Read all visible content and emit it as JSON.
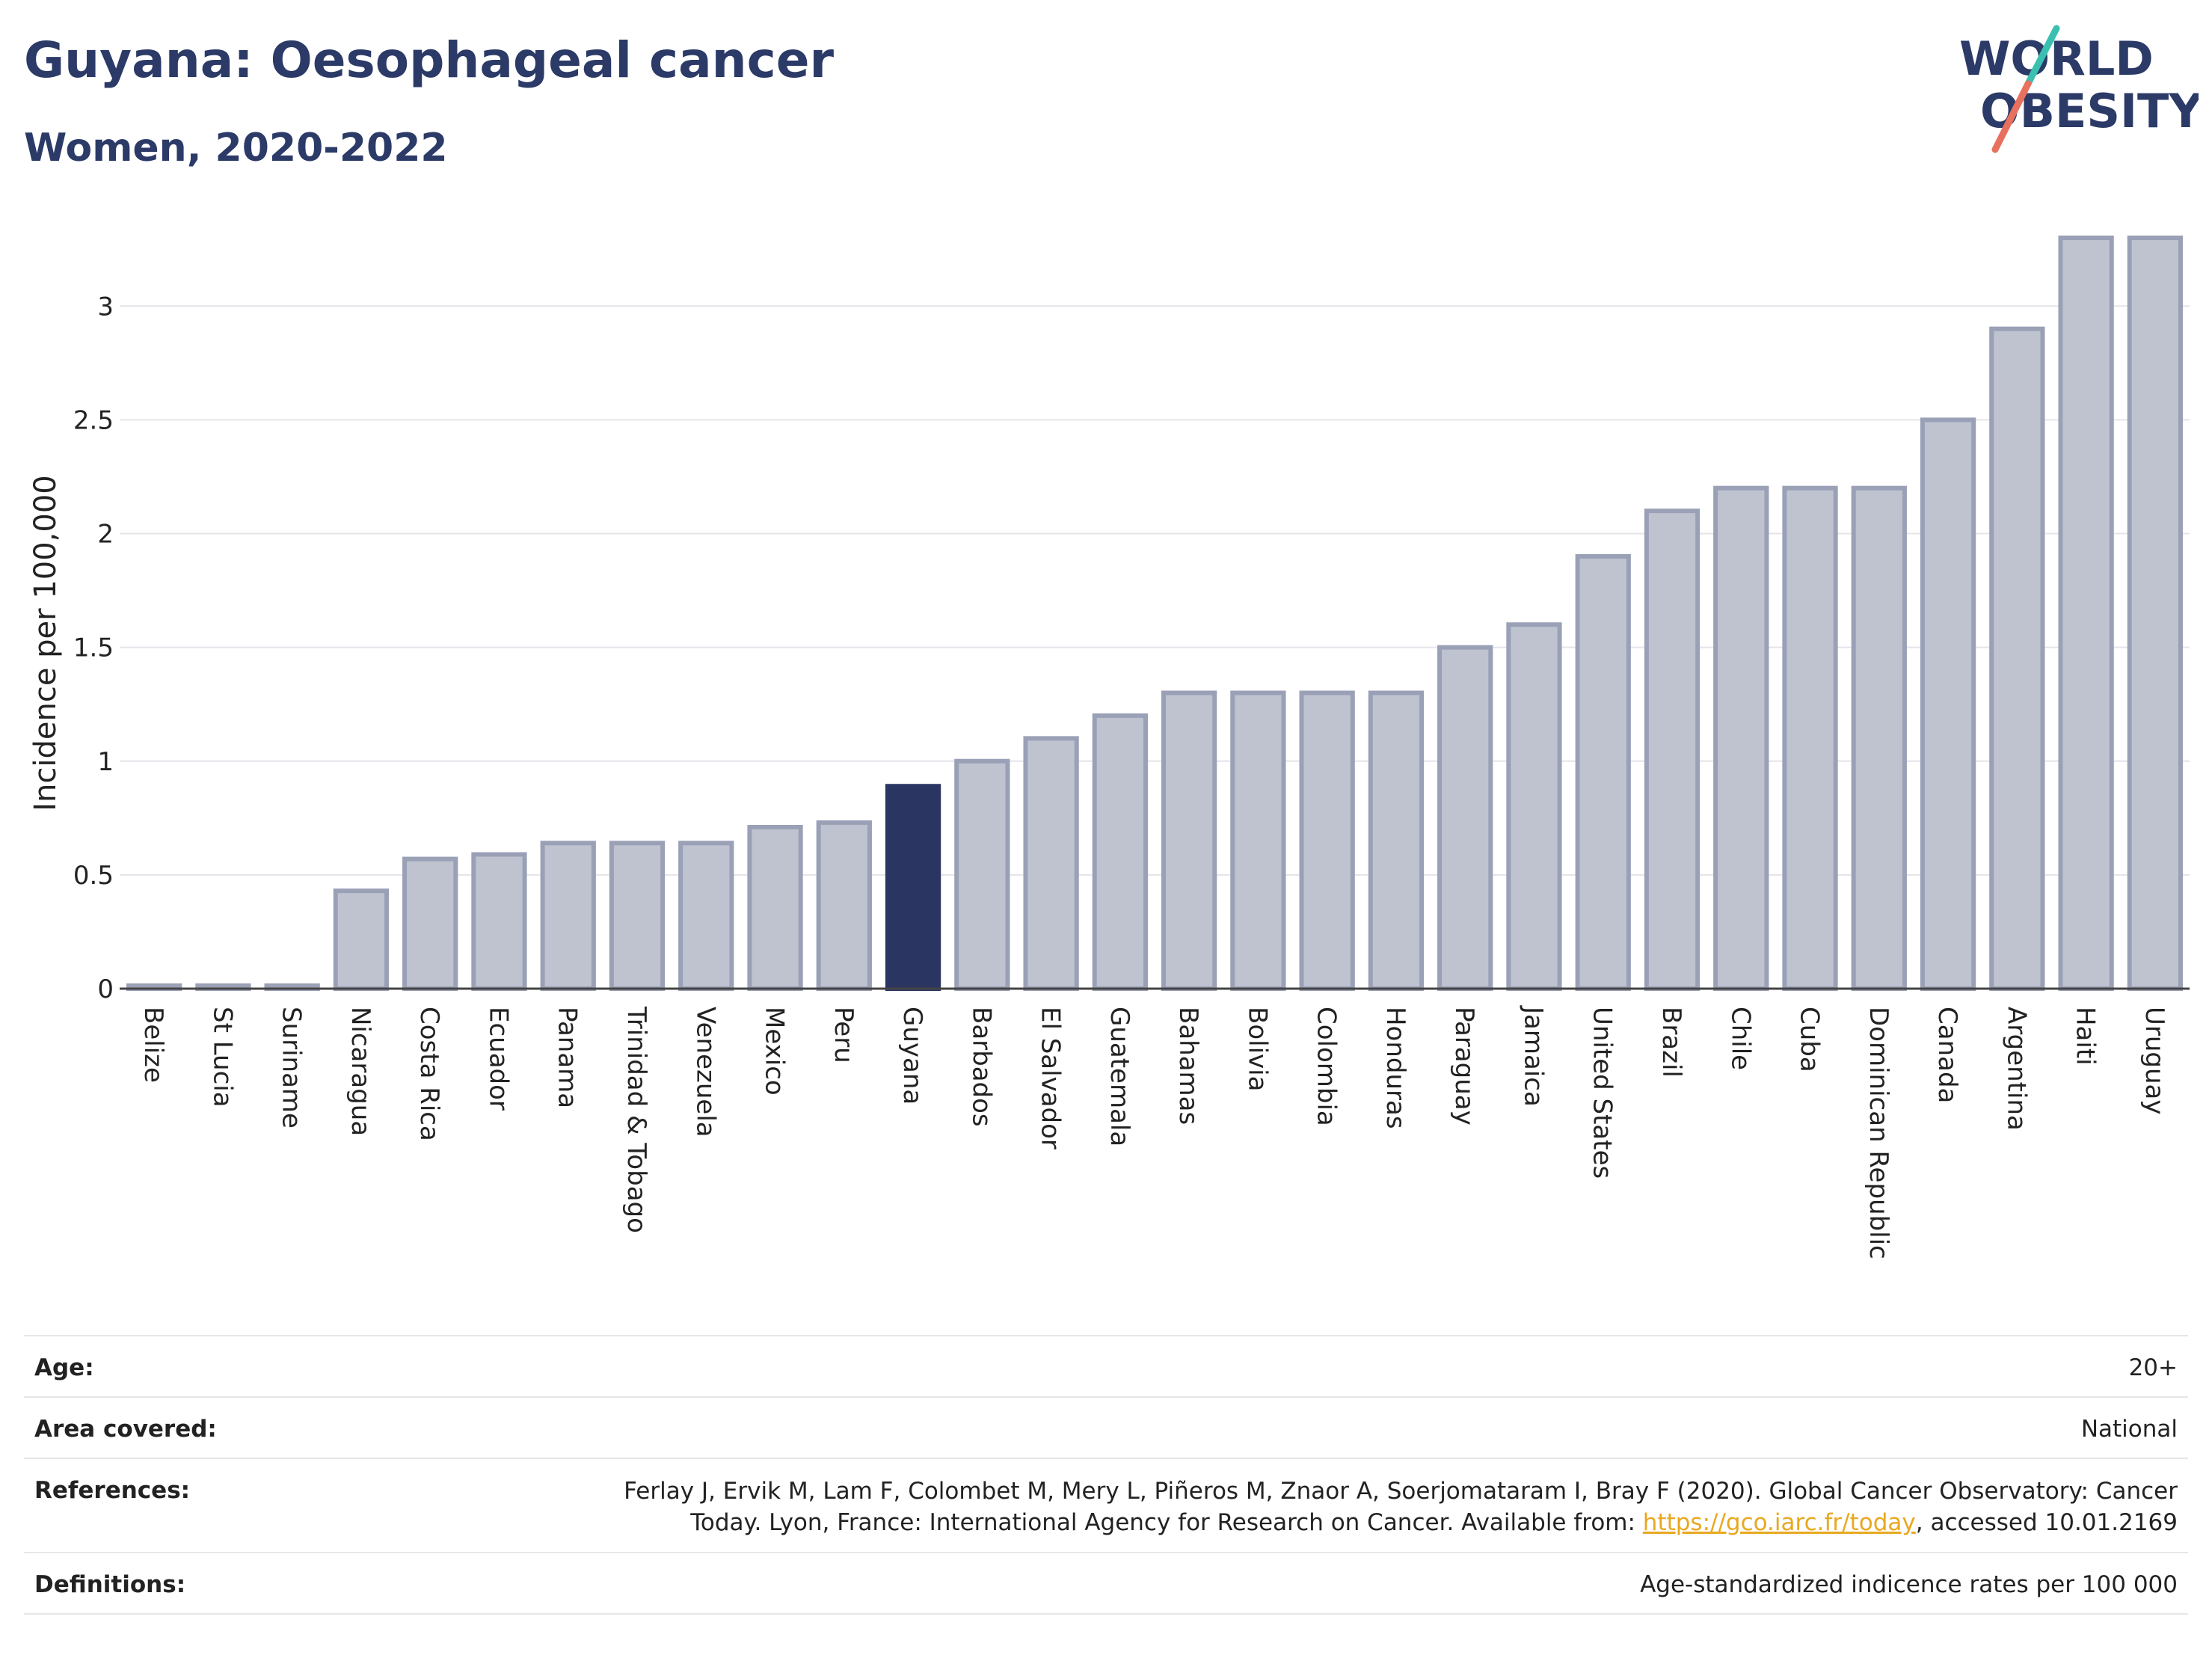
{
  "header": {
    "title": "Guyana: Oesophageal cancer",
    "subtitle": "Women, 2020-2022",
    "logo_line1": "WORLD",
    "logo_line2": "OBESITY"
  },
  "chart_data": {
    "type": "bar",
    "ylabel": "Incidence per 100,000",
    "ylim": [
      0,
      3.3
    ],
    "yticks": [
      0,
      0.5,
      1,
      1.5,
      2,
      2.5,
      3
    ],
    "grid": true,
    "highlight": "Guyana",
    "categories": [
      "Belize",
      "St Lucia",
      "Suriname",
      "Nicaragua",
      "Costa Rica",
      "Ecuador",
      "Panama",
      "Trinidad & Tobago",
      "Venezuela",
      "Mexico",
      "Peru",
      "Guyana",
      "Barbados",
      "El Salvador",
      "Guatemala",
      "Bahamas",
      "Bolivia",
      "Colombia",
      "Honduras",
      "Paraguay",
      "Jamaica",
      "United States",
      "Brazil",
      "Chile",
      "Cuba",
      "Dominican Republic",
      "Canada",
      "Argentina",
      "Haiti",
      "Uruguay"
    ],
    "values": [
      0,
      0,
      0,
      0.43,
      0.57,
      0.59,
      0.64,
      0.64,
      0.64,
      0.71,
      0.73,
      0.89,
      1.0,
      1.1,
      1.2,
      1.3,
      1.3,
      1.3,
      1.3,
      1.5,
      1.6,
      1.9,
      2.1,
      2.2,
      2.2,
      2.2,
      2.5,
      2.9,
      3.3,
      3.3
    ]
  },
  "colors": {
    "bar_fill": "#bfc3d0",
    "bar_stroke": "#9aa0b6",
    "highlight_fill": "#2b3561",
    "title": "#2b3a67",
    "logo_teal": "#3bbfb0",
    "logo_red": "#e8705f"
  },
  "meta": {
    "age_label": "Age:",
    "age_value": "20+",
    "area_label": "Area covered:",
    "area_value": "National",
    "references_label": "References:",
    "references_line1": "Ferlay J, Ervik M, Lam F, Colombet M, Mery L, Piñeros M, Znaor A, Soerjomataram I, Bray F (2020). Global Cancer Observatory: Cancer",
    "references_line2_pre": "Today. Lyon, France: International Agency for Research on Cancer. Available from: ",
    "references_link": "https://gco.iarc.fr/today",
    "references_line2_post": ", accessed 10.01.2169",
    "definitions_label": "Definitions:",
    "definitions_value": "Age-standardized indicence rates per 100 000"
  }
}
